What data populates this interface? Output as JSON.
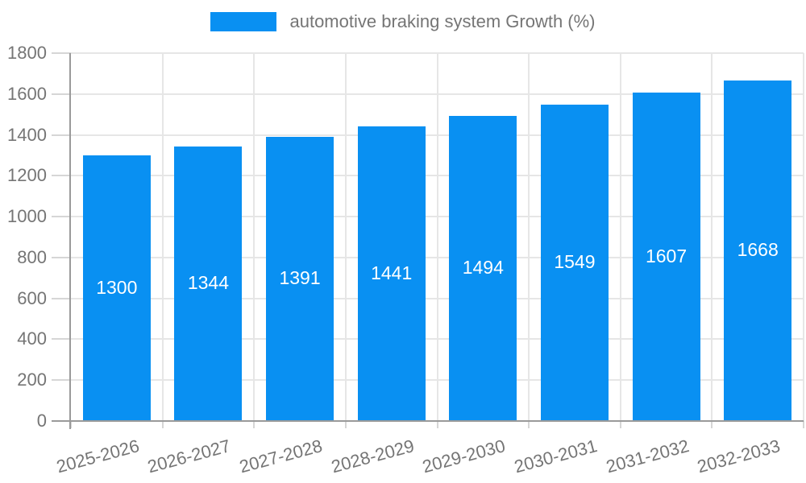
{
  "chart_data": {
    "type": "bar",
    "title": "",
    "legend": "automotive braking system Growth (%)",
    "legend_position": "top",
    "categories": [
      "2025-2026",
      "2026-2027",
      "2027-2028",
      "2028-2029",
      "2029-2030",
      "2030-2031",
      "2031-2032",
      "2032-2033"
    ],
    "values": [
      1300,
      1344,
      1391,
      1441,
      1494,
      1549,
      1607,
      1668
    ],
    "yticks": [
      0,
      200,
      400,
      600,
      800,
      1000,
      1200,
      1400,
      1600,
      1800
    ],
    "ylim": [
      0,
      1800
    ],
    "xlabel": "",
    "ylabel": "",
    "grid": true,
    "colors": {
      "bar": "#0990f2",
      "bar_value_text": "#ffffff",
      "axis_line": "#9a9a9a",
      "grid_line": "#e6e6e6",
      "tick_line": "#d6d6d6",
      "axis_text": "#757575",
      "background": "#ffffff"
    }
  }
}
